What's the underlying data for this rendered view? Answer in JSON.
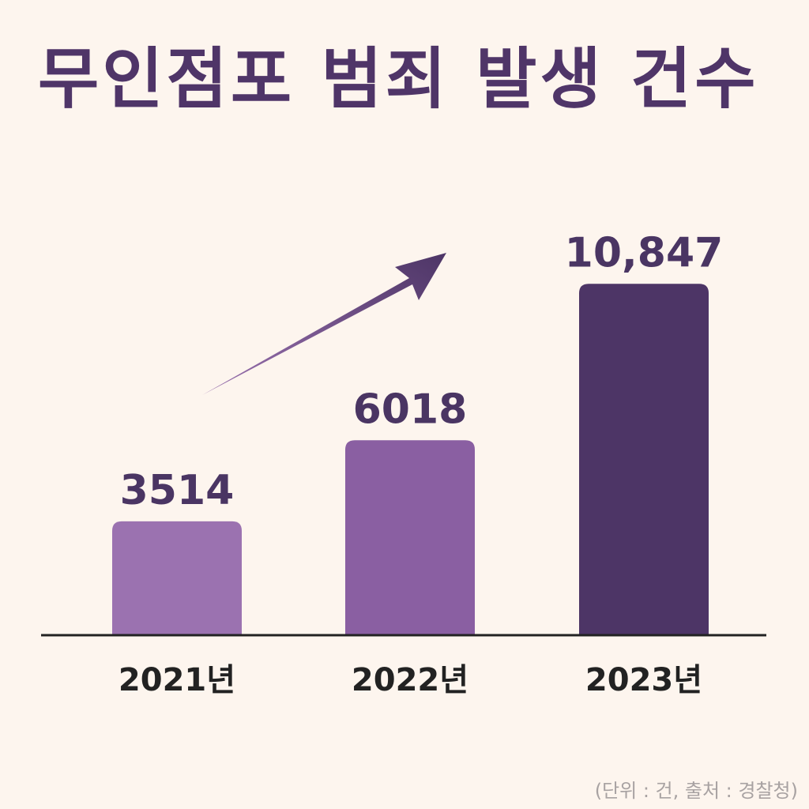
{
  "title": "무인점포 범죄 발생 건수",
  "source": "(단위 : 건, 출처 : 경찰청)",
  "colors": {
    "background": "#fdf5ee",
    "title": "#4f3568",
    "bars": [
      "#9b72b0",
      "#8a5fa2",
      "#4d3566"
    ],
    "axis": "#222222",
    "arrow": "#4d3566"
  },
  "chart_data": {
    "type": "bar",
    "categories": [
      "2021년",
      "2022년",
      "2023년"
    ],
    "values": [
      3514,
      6018,
      10847
    ],
    "value_labels": [
      "3514",
      "6018",
      "10,847"
    ],
    "title": "무인점포 범죄 발생 건수",
    "xlabel": "",
    "ylabel": "",
    "ylim": [
      0,
      11000
    ],
    "grid": false,
    "trend_arrow": "upward"
  }
}
